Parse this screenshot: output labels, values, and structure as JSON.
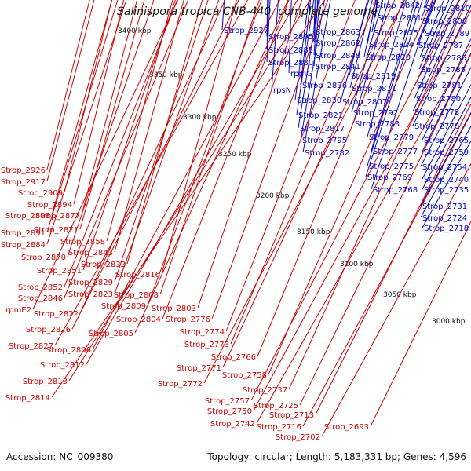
{
  "title": "Salinispora tropica CNB-440, complete genome",
  "footer": {
    "accession": "Accession: NC_009380",
    "summary": "Topology: circular; Length: 5,183,331 bp; Genes: 4,596"
  },
  "kbp_ticks": [
    "3400 kbp",
    "3350 kbp",
    "3300 kbp",
    "3250 kbp",
    "3200 kbp",
    "3150 kbp",
    "3100 kbp",
    "3050 kbp",
    "3000 kbp"
  ],
  "colors": {
    "forward_labels": "#0000cc",
    "reverse_labels": "#cc0000",
    "forward_genes": "#0000ee",
    "reverse_genes": "#ee0000",
    "backbone": "#888888"
  },
  "forward_labels": [
    "Strop_2927",
    "Strop_2895",
    "Strop_2885",
    "Strop_2880",
    "rpmG",
    "rpsN",
    "Strop_2863",
    "Strop_2862",
    "Strop_2848",
    "Strop_2841",
    "Strop_2836",
    "Strop_2830",
    "Strop_2821",
    "Strop_2817",
    "Strop_2795",
    "Strop_2782",
    "Strop_2842",
    "Strop_2831",
    "Strop_2825",
    "Strop_2824",
    "Strop_2820",
    "Strop_2819",
    "Strop_2811",
    "Strop_2807",
    "Strop_2792",
    "Strop_2783",
    "Strop_2779",
    "Strop_2777",
    "Strop_2775",
    "Strop_2769",
    "Strop_2768",
    "Strop_2810",
    "Strop_2800",
    "Strop_2789",
    "Strop_2787",
    "Strop_2786",
    "Strop_2785",
    "Strop_2781",
    "Strop_2780",
    "Strop_2778",
    "Strop_2770",
    "Strop_2765",
    "Strop_2759",
    "Strop_2754",
    "Strop_2740",
    "Strop_2735",
    "Strop_2731",
    "Strop_2724",
    "Strop_2718"
  ],
  "reverse_labels": [
    "Strop_2926",
    "Strop_2917",
    "Strop_2909",
    "Strop_2894",
    "Strop_2898",
    "Strop_2877",
    "Strop_2891",
    "Strop_2871",
    "Strop_2884",
    "Strop_2858",
    "Strop_2843",
    "Strop_2870",
    "Strop_2832",
    "Strop_2851",
    "Strop_2816",
    "Strop_2829",
    "Strop_2852",
    "Strop_2823",
    "Strop_2846",
    "Strop_2808",
    "rpmE2",
    "Strop_2809",
    "Strop_2803",
    "Strop_2822",
    "Strop_2804",
    "Strop_2776",
    "Strop_2826",
    "Strop_2805",
    "Strop_2774",
    "Strop_2827",
    "Strop_2806",
    "Strop_2773",
    "Strop_2766",
    "Strop_2812",
    "Strop_2771",
    "Strop_2758",
    "Strop_2813",
    "Strop_2772",
    "Strop_2737",
    "Strop_2814",
    "Strop_2757",
    "Strop_2725",
    "Strop_2750",
    "Strop_2713",
    "Strop_2742",
    "Strop_2716",
    "Strop_2693",
    "Strop_2702"
  ]
}
